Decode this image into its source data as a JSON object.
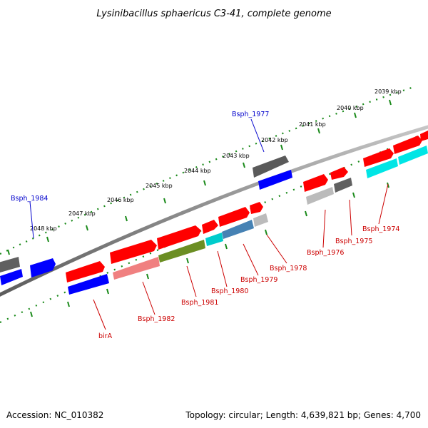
{
  "title": "Lysinibacillus sphaericus C3-41, complete genome",
  "footer": {
    "accession": "Accession: NC_010382",
    "summary": "Topology: circular; Length: 4,639,821 bp; Genes: 4,700"
  },
  "ruler": [
    {
      "label": "2039 kbp"
    },
    {
      "label": "2040 kbp"
    },
    {
      "label": "2041 kbp"
    },
    {
      "label": "2042 kbp"
    },
    {
      "label": "2043 kbp"
    },
    {
      "label": "2044 kbp"
    },
    {
      "label": "2045 kbp"
    },
    {
      "label": "2046 kbp"
    },
    {
      "label": "2047 kbp"
    },
    {
      "label": "2048 kbp"
    }
  ],
  "gene_labels": [
    {
      "text": "Bsph_1977",
      "color": "#0000cc"
    },
    {
      "text": "Bsph_1984",
      "color": "#0000cc"
    },
    {
      "text": "Bsph_1974",
      "color": "#cc0000"
    },
    {
      "text": "Bsph_1975",
      "color": "#cc0000"
    },
    {
      "text": "Bsph_1976",
      "color": "#cc0000"
    },
    {
      "text": "Bsph_1978",
      "color": "#cc0000"
    },
    {
      "text": "Bsph_1979",
      "color": "#cc0000"
    },
    {
      "text": "Bsph_1980",
      "color": "#cc0000"
    },
    {
      "text": "Bsph_1981",
      "color": "#cc0000"
    },
    {
      "text": "Bsph_1982",
      "color": "#cc0000"
    },
    {
      "text": "birA",
      "color": "#cc0000"
    }
  ],
  "colors": {
    "cds_forward": "#ff0000",
    "cds_reverse": "#0000ff",
    "backbone": "#808080",
    "ruler_ticks": "#1a8a1a",
    "feature_grey": "#606060",
    "feature_lightgrey": "#bbbbbb",
    "feature_cyan": "#00e5e5",
    "feature_pink": "#f08080",
    "feature_olive": "#6b8e23",
    "feature_steelblue": "#4682b4"
  }
}
